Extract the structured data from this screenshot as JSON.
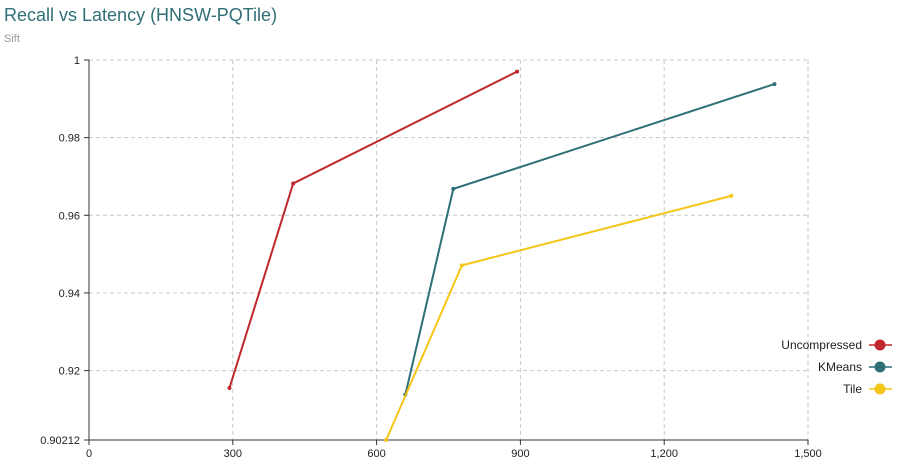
{
  "chart_data": {
    "type": "line",
    "title": "Recall vs Latency (HNSW-PQTile)",
    "subtitle": "Sift",
    "xlabel": "",
    "ylabel": "",
    "xlim": [
      0,
      1500
    ],
    "ylim": [
      0.90212,
      1
    ],
    "x_ticks": [
      {
        "value": 0,
        "label": "0"
      },
      {
        "value": 300,
        "label": "300"
      },
      {
        "value": 600,
        "label": "600"
      },
      {
        "value": 900,
        "label": "900"
      },
      {
        "value": 1200,
        "label": "1,200"
      },
      {
        "value": 1500,
        "label": "1,500"
      }
    ],
    "y_ticks": [
      {
        "value": 0.90212,
        "label": "0.90212"
      },
      {
        "value": 0.92,
        "label": "0.92"
      },
      {
        "value": 0.94,
        "label": "0.94"
      },
      {
        "value": 0.96,
        "label": "0.96"
      },
      {
        "value": 0.98,
        "label": "0.98"
      },
      {
        "value": 1,
        "label": "1"
      }
    ],
    "grid": true,
    "legend_position": "right",
    "series": [
      {
        "name": "Uncompressed",
        "color": "#c0282d",
        "points": [
          [
            293,
            0.9155
          ],
          [
            426,
            0.9682
          ],
          [
            893,
            0.997
          ]
        ]
      },
      {
        "name": "KMeans",
        "color": "#2f6f76",
        "points": [
          [
            660,
            0.9138
          ],
          [
            760,
            0.9668
          ],
          [
            1430,
            0.9938
          ]
        ]
      },
      {
        "name": "Tile",
        "color": "#f5c518",
        "points": [
          [
            620,
            0.90212
          ],
          [
            778,
            0.9471
          ],
          [
            1340,
            0.965
          ]
        ]
      }
    ]
  }
}
